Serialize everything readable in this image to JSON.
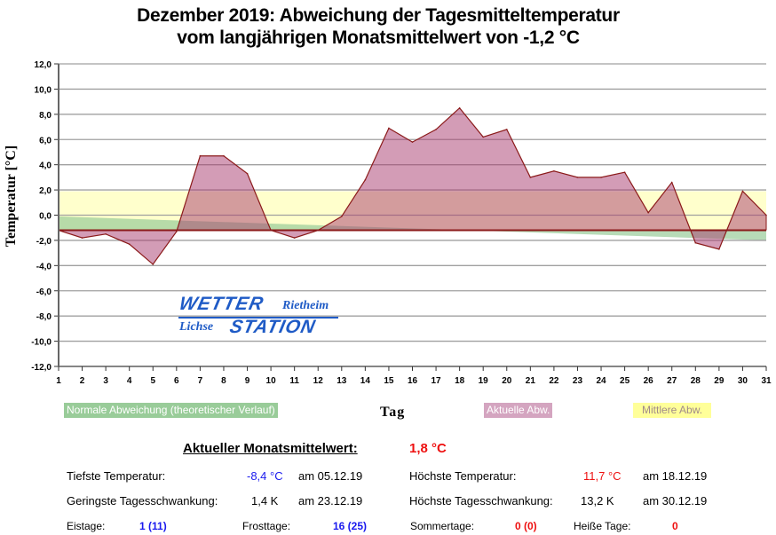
{
  "chart_data": {
    "type": "area",
    "title": "Dezember 2019: Abweichung der Tagesmitteltemperatur",
    "subtitle": "vom langjährigen Monatsmittelwert von -1,2 °C",
    "xlabel": "Tag",
    "ylabel": "Temperatur [°C]",
    "x": [
      1,
      2,
      3,
      4,
      5,
      6,
      7,
      8,
      9,
      10,
      11,
      12,
      13,
      14,
      15,
      16,
      17,
      18,
      19,
      20,
      21,
      22,
      23,
      24,
      25,
      26,
      27,
      28,
      29,
      30,
      31
    ],
    "xlim": [
      1,
      31
    ],
    "ylim": [
      -12,
      12
    ],
    "yticks": [
      12,
      10,
      8,
      6,
      4,
      2,
      0,
      -2,
      -4,
      -6,
      -8,
      -10,
      -12
    ],
    "ytick_labels": [
      "12,0",
      "10,0",
      "8,0",
      "6,0",
      "4,0",
      "2,0",
      "0,0",
      "-2,0",
      "-4,0",
      "-6,0",
      "-8,0",
      "-10,0",
      "-12,0"
    ],
    "xtick_labels": [
      "1",
      "2",
      "3",
      "4",
      "5",
      "6",
      "7",
      "8",
      "9",
      "10",
      "11",
      "12",
      "13",
      "14",
      "15",
      "16",
      "17",
      "18",
      "19",
      "20",
      "21",
      "22",
      "23",
      "24",
      "25",
      "26",
      "27",
      "28",
      "29",
      "30",
      "31"
    ],
    "grid": true,
    "baseline": -1.2,
    "series": [
      {
        "name": "Aktuelle Abw.",
        "color": "#c48aa8",
        "values": [
          -1.2,
          -1.8,
          -1.5,
          -2.3,
          -3.9,
          -1.3,
          4.7,
          4.7,
          3.3,
          -1.2,
          -1.8,
          -1.2,
          -0.1,
          2.8,
          6.9,
          5.8,
          6.8,
          8.5,
          6.2,
          6.8,
          3.0,
          3.5,
          3.0,
          3.0,
          3.4,
          0.2,
          2.6,
          -2.2,
          -2.7,
          1.9,
          0.0
        ]
      },
      {
        "name": "Normale Abweichung (theoretischer Verlauf)",
        "color": "#99cc99",
        "values_start_end": [
          -0.1,
          -2.0
        ]
      },
      {
        "name": "Mittlere Abw.",
        "color": "#ffffcc",
        "band": [
          -1.2,
          1.9
        ]
      }
    ],
    "legend": [
      "Normale Abweichung (theoretischer Verlauf)",
      "Aktuelle Abw.",
      "Mittlere Abw."
    ],
    "legend_placement": "bottom"
  },
  "logo": {
    "line1": "WETTER",
    "line1_suffix": "Rietheim",
    "line2_prefix": "Lichse",
    "line2": "STATION"
  },
  "stats": {
    "mean_label": "Aktueller Monatsmittelwert:",
    "mean_value": "1,8 °C",
    "min_temp_label": "Tiefste Temperatur:",
    "min_temp_value": "-8,4 °C",
    "min_temp_date": "am 05.12.19",
    "max_temp_label": "Höchste Temperatur:",
    "max_temp_value": "11,7 °C",
    "max_temp_date": "am 18.12.19",
    "min_swing_label": "Geringste Tagesschwankung:",
    "min_swing_value": "1,4 K",
    "min_swing_date": "am 23.12.19",
    "max_swing_label": "Höchste Tagesschwankung:",
    "max_swing_value": "13,2 K",
    "max_swing_date": "am 30.12.19",
    "eistage_label": "Eistage:",
    "eistage_value": "1 (11)",
    "frosttage_label": "Frosttage:",
    "frosttage_value": "16 (25)",
    "sommertage_label": "Sommertage:",
    "sommertage_value": "0 (0)",
    "heisse_label": "Heiße Tage:",
    "heisse_value": "0"
  }
}
